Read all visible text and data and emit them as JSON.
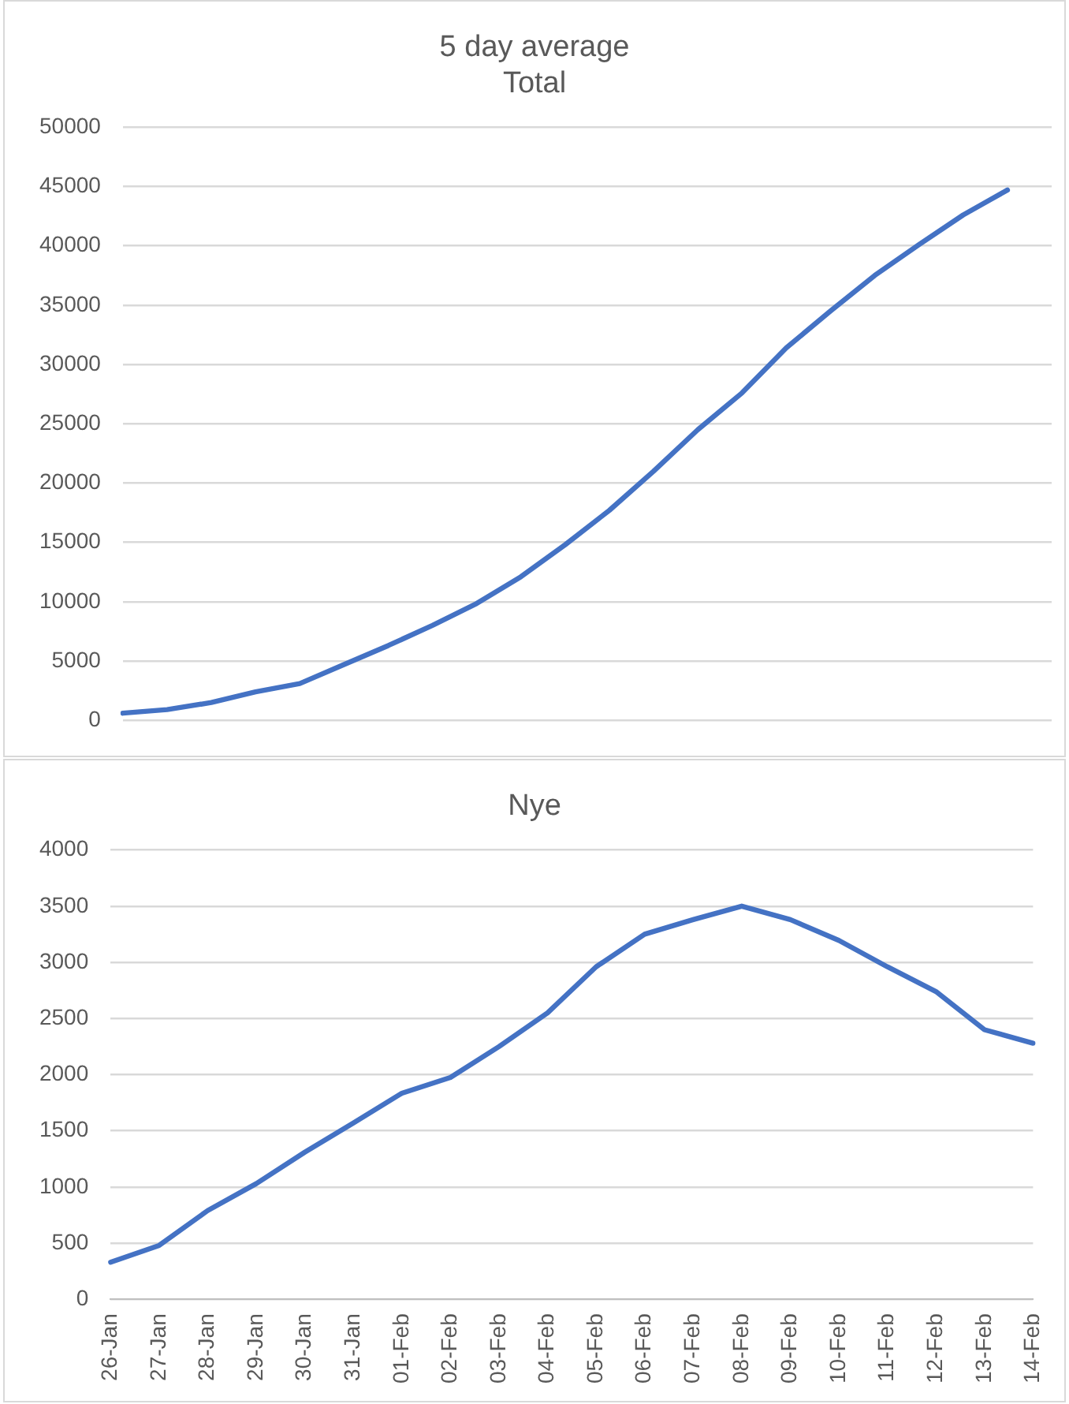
{
  "chart_data": [
    {
      "type": "line",
      "title": "5 day average\nTotal",
      "categories": [
        null,
        null,
        null,
        null,
        null,
        null,
        null,
        null,
        null,
        null,
        null,
        null,
        null,
        null,
        null,
        null,
        null,
        null,
        null,
        null,
        null,
        null
      ],
      "series": [
        {
          "color": "#4472c4",
          "values": [
            600,
            900,
            1500,
            2400,
            3100,
            4700,
            6300,
            8000,
            9850,
            12100,
            14800,
            17700,
            21000,
            24500,
            27600,
            31400,
            34500,
            37500,
            40100,
            42600,
            44700,
            null
          ]
        }
      ],
      "ylim": [
        0,
        50000
      ],
      "yticks": [
        0,
        5000,
        10000,
        15000,
        20000,
        25000,
        30000,
        35000,
        40000,
        45000,
        50000
      ],
      "grid": "y",
      "legend": false,
      "tick_labels": "y",
      "marker": "none",
      "line_style": "solid"
    },
    {
      "type": "line",
      "title": "Nye",
      "categories": [
        "26-Jan",
        "27-Jan",
        "28-Jan",
        "29-Jan",
        "30-Jan",
        "31-Jan",
        "01-Feb",
        "02-Feb",
        "03-Feb",
        "04-Feb",
        "05-Feb",
        "06-Feb",
        "07-Feb",
        "08-Feb",
        "09-Feb",
        "10-Feb",
        "11-Feb",
        "12-Feb",
        "13-Feb",
        "14-Feb"
      ],
      "series": [
        {
          "color": "#4472c4",
          "values": [
            330,
            480,
            790,
            1030,
            1310,
            1570,
            1835,
            1975,
            2250,
            2550,
            2960,
            3250,
            3380,
            3500,
            3380,
            3195,
            2960,
            2740,
            2400,
            2280
          ]
        }
      ],
      "ylim": [
        0,
        4000
      ],
      "yticks": [
        0,
        500,
        1000,
        1500,
        2000,
        2500,
        3000,
        3500,
        4000
      ],
      "grid": "y",
      "legend": false,
      "marker": "none",
      "line_style": "solid"
    }
  ]
}
